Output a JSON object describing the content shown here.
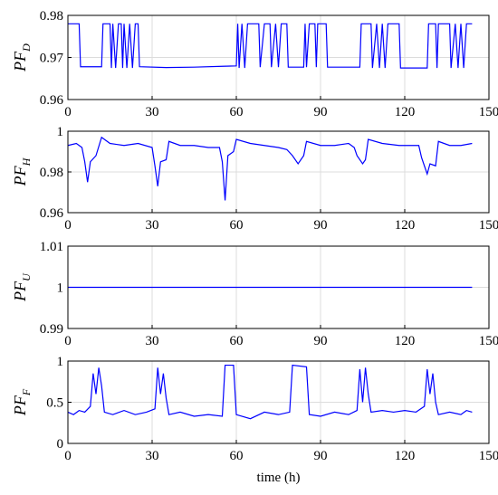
{
  "chart_data": [
    {
      "type": "line",
      "ylabel": "PF",
      "ylabel_subscript": "D",
      "xlim": [
        0,
        150
      ],
      "xticks": [
        0,
        30,
        60,
        90,
        120,
        150
      ],
      "ylim": [
        0.96,
        0.98
      ],
      "yticks": [
        0.96,
        0.97,
        0.98
      ],
      "grid": true,
      "color": "#0000ff",
      "x": [
        0,
        4,
        4.5,
        12,
        12.5,
        15,
        15.5,
        16,
        17,
        18,
        19,
        19.5,
        20,
        21,
        22,
        23,
        24,
        25,
        25.5,
        35,
        45,
        55,
        60,
        60.5,
        61,
        62,
        63,
        64,
        68,
        68.5,
        70,
        72,
        72.5,
        74,
        75,
        76,
        78,
        78.5,
        84,
        84.5,
        85,
        86,
        88,
        88.5,
        89,
        92,
        92.5,
        104,
        104.5,
        108,
        108.5,
        110,
        111,
        112,
        113,
        114,
        118,
        118.5,
        128,
        128.5,
        131,
        131.5,
        132,
        136,
        136.5,
        138,
        139,
        140,
        141,
        142,
        144
      ],
      "values": [
        0.978,
        0.978,
        0.9678,
        0.9678,
        0.978,
        0.978,
        0.9675,
        0.978,
        0.9675,
        0.978,
        0.978,
        0.9675,
        0.978,
        0.9675,
        0.978,
        0.9675,
        0.978,
        0.978,
        0.9678,
        0.9676,
        0.9677,
        0.9679,
        0.968,
        0.978,
        0.9675,
        0.978,
        0.9675,
        0.978,
        0.978,
        0.9677,
        0.978,
        0.978,
        0.9677,
        0.978,
        0.9677,
        0.978,
        0.978,
        0.9677,
        0.9677,
        0.978,
        0.9677,
        0.978,
        0.978,
        0.9677,
        0.978,
        0.978,
        0.9677,
        0.9677,
        0.978,
        0.978,
        0.9675,
        0.978,
        0.9675,
        0.978,
        0.9675,
        0.978,
        0.978,
        0.9675,
        0.9675,
        0.978,
        0.978,
        0.9675,
        0.978,
        0.978,
        0.9675,
        0.978,
        0.9675,
        0.978,
        0.9675,
        0.978,
        0.978
      ]
    },
    {
      "type": "line",
      "ylabel": "PF",
      "ylabel_subscript": "H",
      "xlim": [
        0,
        150
      ],
      "xticks": [
        0,
        30,
        60,
        90,
        120,
        150
      ],
      "ylim": [
        0.96,
        1
      ],
      "yticks": [
        0.96,
        0.98,
        1
      ],
      "grid": true,
      "color": "#0000ff",
      "x": [
        0,
        3,
        5,
        6,
        7,
        8,
        10,
        12,
        15,
        20,
        25,
        30,
        31,
        32,
        33,
        35,
        36,
        40,
        45,
        50,
        54,
        55,
        56,
        57,
        59,
        60,
        65,
        70,
        75,
        78,
        80,
        82,
        84,
        85,
        90,
        95,
        100,
        102,
        103,
        105,
        106,
        107,
        112,
        118,
        125,
        126,
        127,
        128,
        129,
        131,
        132,
        136,
        140,
        144
      ],
      "values": [
        0.993,
        0.994,
        0.992,
        0.985,
        0.975,
        0.985,
        0.988,
        0.997,
        0.994,
        0.993,
        0.994,
        0.992,
        0.983,
        0.973,
        0.985,
        0.986,
        0.995,
        0.993,
        0.993,
        0.992,
        0.992,
        0.985,
        0.966,
        0.988,
        0.99,
        0.996,
        0.994,
        0.993,
        0.992,
        0.991,
        0.988,
        0.984,
        0.988,
        0.995,
        0.993,
        0.993,
        0.994,
        0.992,
        0.988,
        0.984,
        0.986,
        0.996,
        0.994,
        0.993,
        0.993,
        0.987,
        0.983,
        0.979,
        0.984,
        0.983,
        0.995,
        0.993,
        0.993,
        0.994
      ]
    },
    {
      "type": "line",
      "ylabel": "PF",
      "ylabel_subscript": "U",
      "xlim": [
        0,
        150
      ],
      "xticks": [
        0,
        30,
        60,
        90,
        120,
        150
      ],
      "ylim": [
        0.99,
        1.01
      ],
      "yticks": [
        0.99,
        1,
        1.01
      ],
      "grid": true,
      "color": "#0000ff",
      "x": [
        0,
        144
      ],
      "values": [
        1,
        1
      ]
    },
    {
      "type": "line",
      "ylabel": "PF",
      "ylabel_subscript": "F",
      "xlabel": "time (h)",
      "xlim": [
        0,
        150
      ],
      "xticks": [
        0,
        30,
        60,
        90,
        120,
        150
      ],
      "ylim": [
        0,
        1
      ],
      "yticks": [
        0,
        0.5,
        1
      ],
      "grid": true,
      "color": "#0000ff",
      "x": [
        0,
        2,
        4,
        6,
        8,
        9,
        10,
        11,
        12,
        13,
        16,
        20,
        24,
        28,
        31,
        32,
        33,
        34,
        35,
        36,
        40,
        45,
        50,
        55,
        56,
        59,
        60,
        65,
        70,
        75,
        79,
        80,
        85,
        86,
        90,
        95,
        100,
        103,
        104,
        105,
        106,
        107,
        108,
        112,
        116,
        120,
        124,
        127,
        128,
        129,
        130,
        131,
        132,
        136,
        140,
        142,
        144
      ],
      "values": [
        0.38,
        0.35,
        0.4,
        0.38,
        0.45,
        0.85,
        0.6,
        0.92,
        0.7,
        0.38,
        0.35,
        0.4,
        0.35,
        0.38,
        0.42,
        0.92,
        0.6,
        0.85,
        0.55,
        0.35,
        0.38,
        0.33,
        0.35,
        0.33,
        0.95,
        0.95,
        0.35,
        0.3,
        0.38,
        0.35,
        0.38,
        0.95,
        0.93,
        0.35,
        0.33,
        0.38,
        0.35,
        0.4,
        0.9,
        0.5,
        0.92,
        0.6,
        0.38,
        0.4,
        0.38,
        0.4,
        0.38,
        0.45,
        0.9,
        0.6,
        0.85,
        0.5,
        0.35,
        0.38,
        0.35,
        0.4,
        0.38
      ]
    }
  ]
}
